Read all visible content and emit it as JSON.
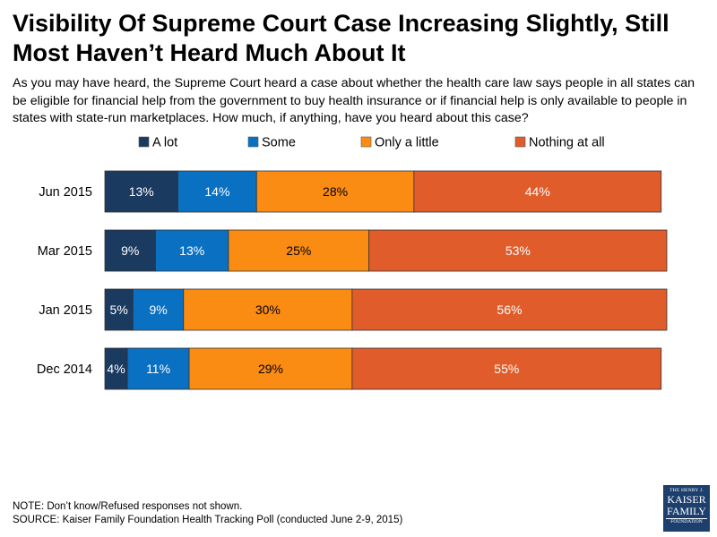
{
  "title": "Visibility Of Supreme Court Case Increasing Slightly, Still Most Haven’t Heard Much About It",
  "subtitle": "As you may have heard, the Supreme Court heard a case about whether the health care law says people in all states can be eligible for financial help from the government to buy health insurance or if financial help is only available to people in states with state-run marketplaces. How much, if anything, have you heard about this case?",
  "note": "NOTE: Don’t know/Refused responses not shown.",
  "source": "SOURCE: Kaiser Family Foundation Health Tracking Poll (conducted June 2-9, 2015)",
  "logo": {
    "line1": "THE HENRY J.",
    "line2": "KAISER",
    "line3": "FAMILY",
    "line4": "FOUNDATION"
  },
  "chart_data": {
    "type": "bar",
    "orientation": "horizontal",
    "stacked": true,
    "categories": [
      "Jun 2015",
      "Mar 2015",
      "Jan 2015",
      "Dec 2014"
    ],
    "legend_position": "top",
    "xlim": [
      0,
      100
    ],
    "series": [
      {
        "name": "A lot",
        "values": [
          13,
          9,
          5,
          4
        ],
        "color": "#1b3a5f",
        "label_color": "#ffffff"
      },
      {
        "name": "Some",
        "values": [
          14,
          13,
          9,
          11
        ],
        "color": "#0a70c2",
        "label_color": "#ffffff"
      },
      {
        "name": "Only a little",
        "values": [
          28,
          25,
          30,
          29
        ],
        "color": "#fb8c13",
        "label_color": "#000000"
      },
      {
        "name": "Nothing at all",
        "values": [
          44,
          53,
          56,
          55
        ],
        "color": "#e05c2a",
        "label_color": "#ffffff"
      }
    ]
  }
}
